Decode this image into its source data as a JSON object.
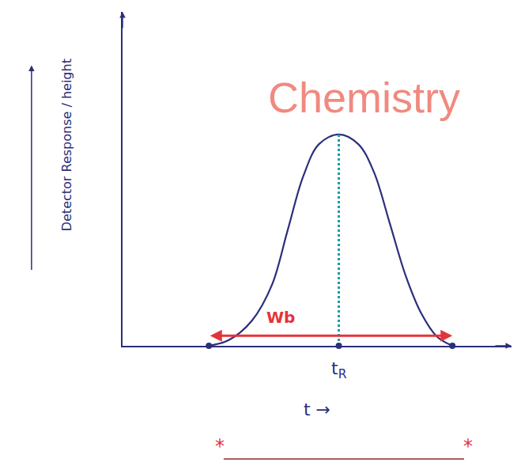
{
  "chart_data": {
    "type": "line",
    "title": "Chemistry",
    "x_label": "t →",
    "y_label": "Detector Response / height",
    "x": [
      2.22,
      2.73,
      3.33,
      3.84,
      4.24,
      4.65,
      5.05,
      5.56,
      6.06,
      6.46,
      6.87,
      7.27,
      7.68,
      8.08,
      8.48
    ],
    "values": [
      0,
      0.17,
      0.76,
      1.82,
      3.44,
      5.09,
      6.04,
      6.33,
      6.04,
      5.21,
      3.67,
      2.13,
      0.97,
      0.28,
      0
    ],
    "color": "#2b2f7a",
    "xlim": [
      0,
      10
    ],
    "ylim": [
      0,
      10
    ],
    "tick_labels": false,
    "grid": false,
    "annotations": [
      "Wb",
      "tR"
    ],
    "footer_marks": [
      "*",
      "*"
    ]
  }
}
